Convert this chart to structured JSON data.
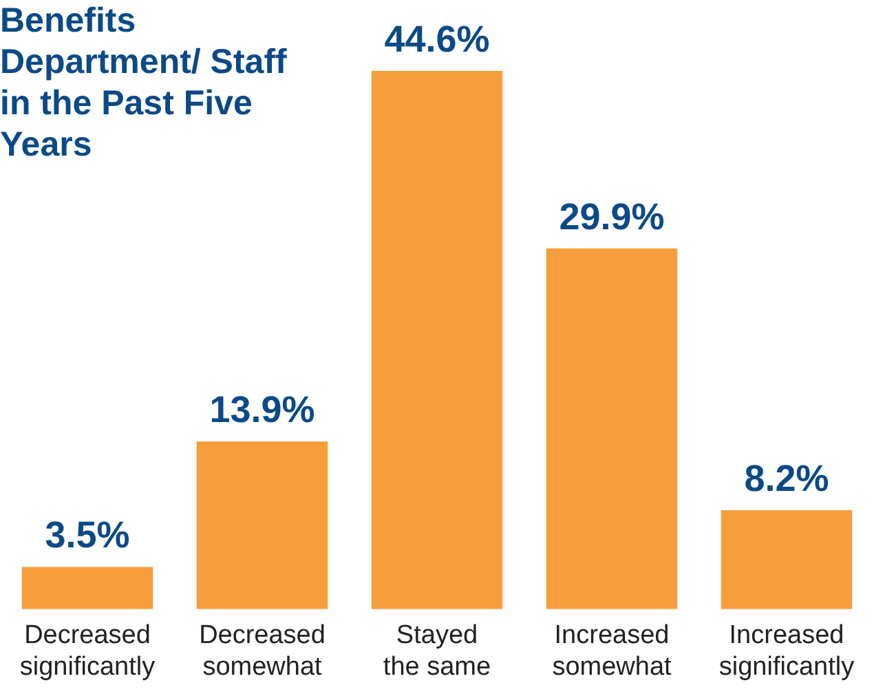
{
  "chart_data": {
    "type": "bar",
    "title": "Benefits Department/ Staff in the Past Five Years",
    "categories": [
      "Decreased significantly",
      "Decreased somewhat",
      "Stayed the same",
      "Increased somewhat",
      "Increased significantly"
    ],
    "values": [
      3.5,
      13.9,
      44.6,
      29.9,
      8.2
    ],
    "value_labels": [
      "3.5%",
      "13.9%",
      "44.6%",
      "29.9%",
      "8.2%"
    ],
    "color": "#f79d3c",
    "grid": false,
    "legend": false
  }
}
